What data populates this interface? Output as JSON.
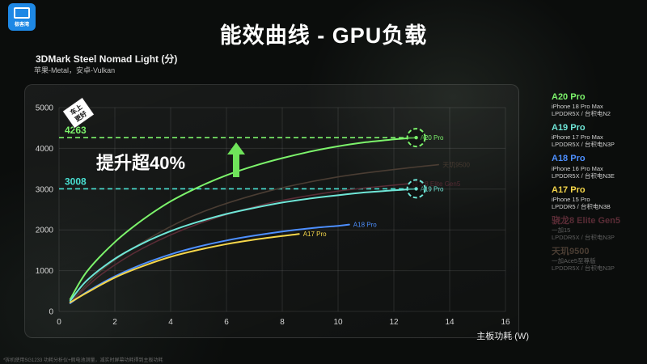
{
  "header": {
    "logo_text": "极客湾",
    "title": "能效曲线 - GPU负载",
    "bench_title": "3DMark Steel Nomad Light (分)",
    "bench_sub": "苹果-Metal，安卓-Vulkan"
  },
  "annotations": {
    "badge": "车上更好",
    "improvement": "提升超40%",
    "arrow_color": "#6fe35a",
    "ref_lines": [
      {
        "value": 4263,
        "label": "4263",
        "color": "#7cf36b"
      },
      {
        "value": 3008,
        "label": "3008",
        "color": "#49e0d2"
      }
    ]
  },
  "legend": [
    {
      "name": "A20 Pro",
      "color": "#7cf36b",
      "dim": false,
      "lines": [
        "iPhone 18 Pro Max",
        "LPDDR5X / 台积电N2"
      ]
    },
    {
      "name": "A19 Pro",
      "color": "#6fe6d7",
      "dim": false,
      "lines": [
        "iPhone 17 Pro Max",
        "LPDDR5X / 台积电N3P"
      ]
    },
    {
      "name": "A18 Pro",
      "color": "#4d8fff",
      "dim": false,
      "lines": [
        "iPhone 16 Pro Max",
        "LPDDR5X / 台积电N3E"
      ]
    },
    {
      "name": "A17 Pro",
      "color": "#f5d64a",
      "dim": false,
      "lines": [
        "iPhone 15 Pro",
        "LPDDR5 / 台积电N3B"
      ]
    },
    {
      "name": "骁龙8 Elite Gen5",
      "color": "#5a2c36",
      "dim": true,
      "lines": [
        "一加15",
        "LPDDR5X / 台积电N3P"
      ]
    },
    {
      "name": "天玑9500",
      "color": "#4a3d33",
      "dim": true,
      "lines": [
        "一加Ace5至尊版",
        "LPDDR5X / 台积电N3P"
      ]
    }
  ],
  "footnote": "*拆机使用SG1233 功耗分析仪+假电池测量，减实时屏幕功耗得到主板功耗",
  "chart_data": {
    "type": "line",
    "title": "3DMark Steel Nomad Light (分)",
    "xlabel": "主板功耗 (W)",
    "ylabel": "",
    "xlim": [
      0,
      16
    ],
    "ylim": [
      0,
      5000
    ],
    "xticks": [
      0,
      2,
      4,
      6,
      8,
      10,
      12,
      14,
      16
    ],
    "yticks": [
      0,
      1000,
      2000,
      3000,
      4000,
      5000
    ],
    "grid": true,
    "series": [
      {
        "name": "天玑9500",
        "color": "#4a3d33",
        "dim": true,
        "label": "天玑9500",
        "points": [
          [
            0.5,
            300
          ],
          [
            1.5,
            1000
          ],
          [
            3,
            1700
          ],
          [
            5,
            2400
          ],
          [
            7.5,
            2950
          ],
          [
            10,
            3300
          ],
          [
            12.5,
            3520
          ],
          [
            13.6,
            3600
          ]
        ]
      },
      {
        "name": "骁龙8 Elite Gen5",
        "color": "#5a2c36",
        "dim": true,
        "label": "骁龙8 Elite Gen5",
        "points": [
          [
            0.5,
            280
          ],
          [
            1.5,
            900
          ],
          [
            3,
            1550
          ],
          [
            5,
            2150
          ],
          [
            7.5,
            2650
          ],
          [
            10,
            2950
          ],
          [
            12.5,
            3130
          ]
        ]
      },
      {
        "name": "A20 Pro",
        "color": "#7cf36b",
        "dim": false,
        "label": "A20 Pro",
        "points": [
          [
            0.4,
            300
          ],
          [
            1,
            980
          ],
          [
            2,
            1700
          ],
          [
            3,
            2250
          ],
          [
            4,
            2700
          ],
          [
            5,
            3050
          ],
          [
            6,
            3340
          ],
          [
            7,
            3570
          ],
          [
            8,
            3760
          ],
          [
            9,
            3920
          ],
          [
            10,
            4050
          ],
          [
            11,
            4150
          ],
          [
            12,
            4220
          ],
          [
            12.8,
            4263
          ]
        ]
      },
      {
        "name": "A19 Pro",
        "color": "#6fe6d7",
        "dim": false,
        "label": "A19 Pro",
        "points": [
          [
            0.4,
            260
          ],
          [
            1,
            760
          ],
          [
            2,
            1290
          ],
          [
            3,
            1670
          ],
          [
            4,
            1970
          ],
          [
            5,
            2200
          ],
          [
            6,
            2390
          ],
          [
            7,
            2540
          ],
          [
            8,
            2670
          ],
          [
            9,
            2770
          ],
          [
            10,
            2850
          ],
          [
            11,
            2920
          ],
          [
            12,
            2970
          ],
          [
            12.8,
            3008
          ]
        ]
      },
      {
        "name": "A18 Pro",
        "color": "#4d8fff",
        "dim": false,
        "label": "A18 Pro",
        "points": [
          [
            0.4,
            200
          ],
          [
            1,
            480
          ],
          [
            2,
            860
          ],
          [
            3,
            1160
          ],
          [
            4,
            1400
          ],
          [
            5,
            1590
          ],
          [
            6,
            1740
          ],
          [
            7,
            1860
          ],
          [
            8,
            1960
          ],
          [
            9,
            2040
          ],
          [
            10,
            2100
          ],
          [
            10.4,
            2130
          ]
        ]
      },
      {
        "name": "A17 Pro",
        "color": "#f5d64a",
        "dim": false,
        "label": "A17 Pro",
        "points": [
          [
            0.4,
            220
          ],
          [
            1,
            460
          ],
          [
            2,
            830
          ],
          [
            3,
            1110
          ],
          [
            4,
            1340
          ],
          [
            5,
            1510
          ],
          [
            6,
            1650
          ],
          [
            7,
            1760
          ],
          [
            8,
            1850
          ],
          [
            8.6,
            1900
          ]
        ]
      }
    ],
    "highlights": [
      {
        "series": "A20 Pro",
        "x": 12.8,
        "y": 4263
      },
      {
        "series": "A19 Pro",
        "x": 12.8,
        "y": 3008
      }
    ]
  }
}
